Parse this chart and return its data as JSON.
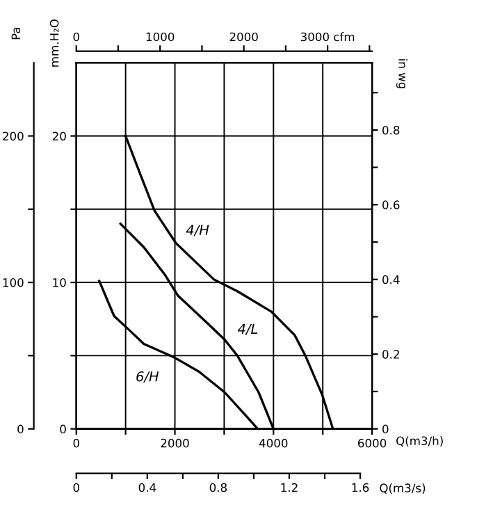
{
  "chart_data": {
    "type": "line",
    "xlabel": "Q(m3/h)",
    "ylabel": "mm.H₂O",
    "y2label": "in wg",
    "y3label": "Pa",
    "xlim": [
      0,
      6000
    ],
    "xticks": [
      0,
      {
        "value": 1000,
        "label": null
      },
      2000,
      {
        "value": 3000,
        "label": null
      },
      4000,
      {
        "value": 5000,
        "label": null
      },
      6000
    ],
    "ylim": [
      0,
      25
    ],
    "yticks": [
      0,
      {
        "value": 5,
        "label": null
      },
      10,
      {
        "value": 15,
        "label": null
      },
      20
    ],
    "y2lim": [
      0,
      0.98
    ],
    "y2ticks": [
      0,
      {
        "value": 0.1,
        "label": null
      },
      0.2,
      {
        "value": 0.3,
        "label": null
      },
      0.4,
      {
        "value": 0.5,
        "label": null
      },
      0.6,
      {
        "value": 0.7,
        "label": null
      },
      0.8,
      {
        "value": 0.9,
        "label": null
      }
    ],
    "y3lim": [
      0,
      250
    ],
    "y3ticks": [
      0,
      {
        "value": 50,
        "label": null
      },
      100,
      {
        "value": 150,
        "label": null
      },
      200
    ],
    "x2lim": [
      0,
      3531
    ],
    "x2ticks": [
      0,
      {
        "value": 500,
        "label": null
      },
      1000,
      {
        "value": 1500,
        "label": null
      },
      2000,
      {
        "value": 2500,
        "label": null
      },
      {
        "value": 3000,
        "label": "3000 cfm"
      },
      {
        "value": 3500,
        "label": null
      }
    ],
    "grid": true,
    "marker": "none",
    "line_style": "solid",
    "series": [
      {
        "color": "#000000",
        "x": [
          1000,
          1285,
          1586,
          2017,
          2793,
          3267,
          3957,
          4430,
          4647,
          4991,
          5206
        ],
        "values": [
          20,
          17.5,
          14.9,
          12.7,
          10.2,
          9.4,
          8.0,
          6.4,
          5.0,
          2.3,
          0
        ]
      },
      {
        "color": "#000000",
        "x": [
          897,
          1370,
          1802,
          2061,
          2664,
          3008,
          3267,
          3698,
          4000
        ],
        "values": [
          14.0,
          12.4,
          10.5,
          9.1,
          7.2,
          6.1,
          5.0,
          2.5,
          0
        ]
      },
      {
        "color": "#000000",
        "x": [
          465,
          767,
          1026,
          1370,
          1974,
          2491,
          3008,
          3440,
          3680
        ],
        "values": [
          10.1,
          7.7,
          6.9,
          5.8,
          4.9,
          3.9,
          2.5,
          0.9,
          0
        ]
      }
    ],
    "annotations": [
      "4/H",
      "4/L",
      "6/H",
      "0",
      "0.4",
      "0.8",
      "1.2",
      "1.6",
      "Q(m3/s)"
    ]
  }
}
